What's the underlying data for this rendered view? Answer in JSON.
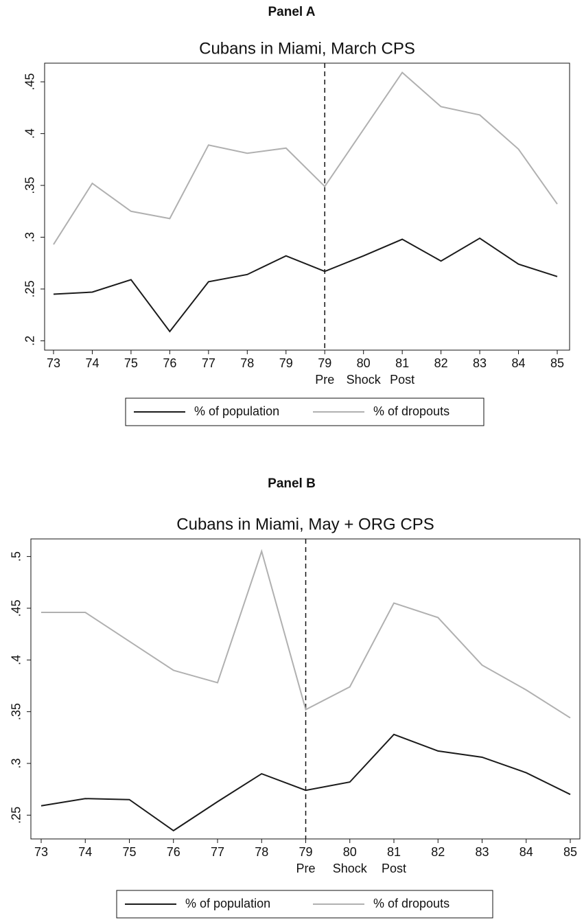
{
  "chart_data": [
    {
      "type": "line",
      "panel": "Panel A",
      "title": "Cubans in Miami, March CPS",
      "categories": [
        "73",
        "74",
        "75",
        "76",
        "77",
        "78",
        "79",
        "79",
        "80",
        "81",
        "82",
        "83",
        "84",
        "85"
      ],
      "x_sublabels": [
        null,
        null,
        null,
        null,
        null,
        null,
        null,
        "Pre",
        "Shock",
        "Post",
        null,
        null,
        null,
        null
      ],
      "series": [
        {
          "name": "% of population",
          "color": "#1a1a1a",
          "values": [
            0.245,
            0.247,
            0.259,
            0.209,
            0.257,
            0.264,
            0.282,
            0.267,
            0.282,
            0.298,
            0.277,
            0.299,
            0.274,
            0.262
          ]
        },
        {
          "name": "% of dropouts",
          "color": "#b0b0b0",
          "values": [
            0.293,
            0.352,
            0.325,
            0.318,
            0.389,
            0.381,
            0.386,
            0.349,
            0.404,
            0.459,
            0.426,
            0.418,
            0.385,
            0.332
          ]
        }
      ],
      "ylim": [
        0.191,
        0.468
      ],
      "yticks": [
        {
          "value": 0.2,
          "label": ".2"
        },
        {
          "value": 0.25,
          "label": ".25"
        },
        {
          "value": 0.3,
          "label": ".3"
        },
        {
          "value": 0.35,
          "label": ".35"
        },
        {
          "value": 0.4,
          "label": ".4"
        },
        {
          "value": 0.45,
          "label": ".45"
        }
      ]
    },
    {
      "type": "line",
      "panel": "Panel B",
      "title": "Cubans in Miami, May + ORG CPS",
      "categories": [
        "73",
        "74",
        "75",
        "76",
        "77",
        "78",
        "79",
        "80",
        "81",
        "82",
        "83",
        "84",
        "85"
      ],
      "x_sublabels": [
        null,
        null,
        null,
        null,
        null,
        null,
        "Pre",
        "Shock",
        "Post",
        null,
        null,
        null,
        null
      ],
      "series": [
        {
          "name": "% of population",
          "color": "#1a1a1a",
          "values": [
            0.259,
            0.266,
            0.265,
            0.235,
            0.263,
            0.29,
            0.274,
            0.282,
            0.328,
            0.312,
            0.306,
            0.291,
            0.27
          ]
        },
        {
          "name": "% of dropouts",
          "color": "#b0b0b0",
          "values": [
            0.446,
            0.446,
            0.418,
            0.39,
            0.378,
            0.505,
            0.352,
            0.374,
            0.455,
            0.441,
            0.395,
            0.371,
            0.344
          ]
        }
      ],
      "ylim": [
        0.227,
        0.517
      ],
      "yticks": [
        {
          "value": 0.25,
          "label": ".25"
        },
        {
          "value": 0.3,
          "label": ".3"
        },
        {
          "value": 0.35,
          "label": ".35"
        },
        {
          "value": 0.4,
          "label": ".4"
        },
        {
          "value": 0.45,
          "label": ".45"
        },
        {
          "value": 0.5,
          "label": ".5"
        }
      ]
    }
  ]
}
